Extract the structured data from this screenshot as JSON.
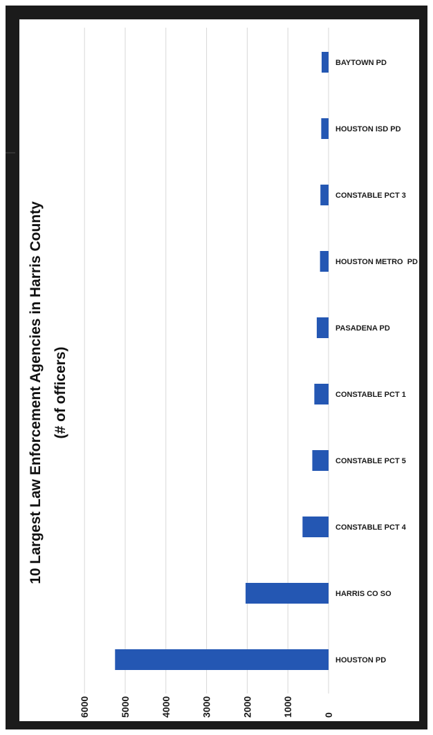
{
  "chart_data": {
    "type": "bar",
    "orientation": "horizontal",
    "title": "10 Largest Law Enforcement Agencies in Harris County",
    "subtitle": "(# of officers)",
    "categories": [
      "BAYTOWN PD",
      "HOUSTON ISD PD",
      "CONSTABLE PCT 3",
      "HOUSTON METRO  PD",
      "PASADENA PD",
      "CONSTABLE PCT 1",
      "CONSTABLE PCT 5",
      "CONSTABLE PCT 4",
      "HARRIS CO SO",
      "HOUSTON PD"
    ],
    "values": [
      170,
      180,
      200,
      210,
      290,
      350,
      400,
      640,
      2040,
      5250
    ],
    "ticks": [
      0,
      1000,
      2000,
      3000,
      4000,
      5000,
      6000
    ],
    "xlim": [
      0,
      6000
    ],
    "grid": true,
    "bar_color": "#2457b3",
    "gridline_color": "#d7d7d7"
  }
}
